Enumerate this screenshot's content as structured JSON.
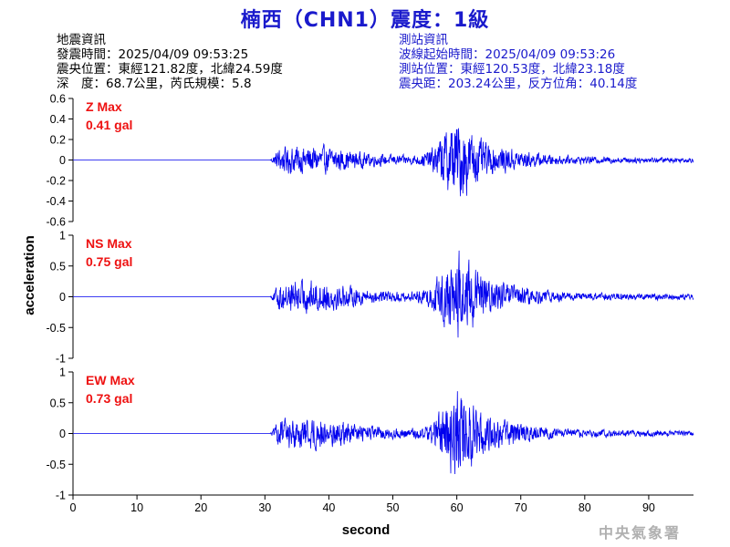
{
  "header": {
    "title": "楠西（CHN1）震度：1級",
    "quake_heading": "地震資訊",
    "origin_time": "發震時間：2025/04/09 09:53:25",
    "epicenter": "震央位置：東經121.82度，北緯24.59度",
    "depth_magnitude": "深　度：68.7公里，芮氏規模：5.8",
    "station_heading": "測站資訊",
    "wave_start": "波線起始時間：2025/04/09 09:53:26",
    "station_location": "測站位置：東經120.53度，北緯23.18度",
    "distance_azimuth": "震央距：203.24公里，反方位角：40.14度"
  },
  "footer": {
    "agency": "中央氣象署"
  },
  "colors": {
    "title": "#1a1acc",
    "trace": "#0000ee",
    "max_label": "#ee1111"
  },
  "chart_data": {
    "type": "line",
    "xlabel": "second",
    "ylabel": "acceleration",
    "xlim": [
      0,
      97
    ],
    "x_ticks": [
      "0",
      "10",
      "20",
      "30",
      "40",
      "50",
      "60",
      "70",
      "80",
      "90"
    ],
    "signal_onset_s": 30.8,
    "peak_time_s": 60,
    "panels": [
      {
        "name": "Z",
        "max_label": "Z Max",
        "max_value": "0.41 gal",
        "ylim": [
          -0.6,
          0.6
        ],
        "y_ticks": [
          "0.6",
          "0.4",
          "0.2",
          "0",
          "-0.2",
          "-0.4",
          "-0.6"
        ],
        "peak": 0.41
      },
      {
        "name": "NS",
        "max_label": "NS Max",
        "max_value": "0.75 gal",
        "ylim": [
          -1,
          1
        ],
        "y_ticks": [
          "1",
          "0.5",
          "0",
          "-0.5",
          "-1"
        ],
        "peak": 0.75
      },
      {
        "name": "EW",
        "max_label": "EW Max",
        "max_value": "0.73 gal",
        "ylim": [
          -1,
          1
        ],
        "y_ticks": [
          "1",
          "0.5",
          "0",
          "-0.5",
          "-1"
        ],
        "peak": 0.73
      }
    ]
  }
}
